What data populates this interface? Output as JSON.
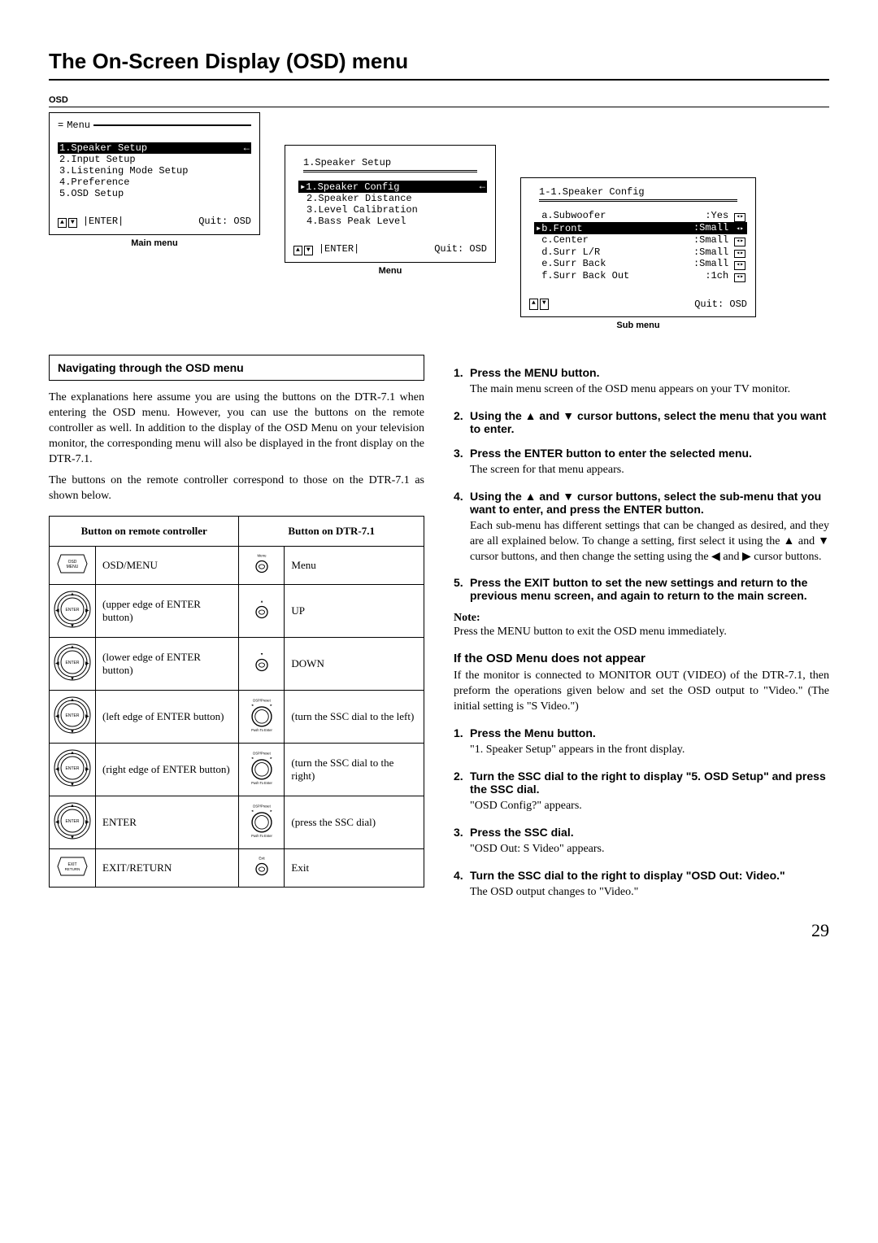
{
  "page_title": "The On-Screen Display (OSD) menu",
  "page_number": "29",
  "osd_label": "OSD",
  "main_menu": {
    "title": "Menu",
    "items": [
      "1.Speaker Setup",
      "2.Input Setup",
      "3.Listening Mode Setup",
      "4.Preference",
      "5.OSD Setup"
    ],
    "foot_left": "ENTER",
    "foot_right": "Quit: OSD",
    "caption": "Main menu"
  },
  "menu": {
    "title": "1.Speaker Setup",
    "items": [
      "1.Speaker Config",
      "2.Speaker Distance",
      "3.Level Calibration",
      "4.Bass Peak Level"
    ],
    "foot_left": "ENTER",
    "foot_right": "Quit: OSD",
    "caption": "Menu"
  },
  "sub_menu": {
    "title": "1-1.Speaker Config",
    "rows": [
      {
        "k": "a.Subwoofer",
        "v": ":Yes"
      },
      {
        "k": "b.Front",
        "v": ":Small"
      },
      {
        "k": "c.Center",
        "v": ":Small"
      },
      {
        "k": "d.Surr L/R",
        "v": ":Small"
      },
      {
        "k": "e.Surr Back",
        "v": ":Small"
      },
      {
        "k": "f.Surr Back Out",
        "v": ":1ch"
      }
    ],
    "foot_right": "Quit: OSD",
    "caption": "Sub menu"
  },
  "nav_heading": "Navigating through the OSD menu",
  "nav_p1": "The explanations here assume you are using the buttons on the DTR-7.1 when entering the OSD menu. However, you can use the buttons on the remote controller as well. In addition to the display of the OSD Menu on your television monitor, the corresponding menu will also be displayed in the front display on the DTR-7.1.",
  "nav_p2": "The buttons on the remote controller correspond to those on the DTR-7.1 as shown below.",
  "table": {
    "h1": "Button on remote controller",
    "h2": "Button on DTR-7.1",
    "rows": [
      {
        "rc": "OSD/MENU",
        "d_top": "Menu",
        "d": "Menu",
        "type": "small"
      },
      {
        "rc": "(upper edge of ENTER button)",
        "d_top": "▲",
        "d": "UP",
        "type": "small"
      },
      {
        "rc": "(lower edge of ENTER button)",
        "d_top": "▼",
        "d": "DOWN",
        "type": "small"
      },
      {
        "rc": "(left edge of ENTER button)",
        "d_top": "DSP/Preset",
        "d": "(turn the SSC dial to the left)",
        "type": "dial"
      },
      {
        "rc": "(right edge of ENTER button)",
        "d_top": "DSP/Preset",
        "d": "(turn the SSC dial to the right)",
        "type": "dial"
      },
      {
        "rc": "ENTER",
        "d_top": "DSP/Preset",
        "d": "(press the SSC dial)",
        "type": "dial"
      },
      {
        "rc": "EXIT/RETURN",
        "d_top": "Exit",
        "d": "Exit",
        "type": "small"
      }
    ]
  },
  "steps_a": [
    {
      "n": "1.",
      "h": "Press the MENU button.",
      "b": "The main menu screen of the OSD menu appears on your TV monitor."
    },
    {
      "n": "2.",
      "h": "Using the ▲ and ▼ cursor buttons, select the menu that you want to enter.",
      "b": ""
    },
    {
      "n": "3.",
      "h": "Press the ENTER button to enter the selected menu.",
      "b": "The screen for that menu appears."
    },
    {
      "n": "4.",
      "h": "Using the ▲ and ▼ cursor buttons, select the sub-menu that you want to enter, and press the ENTER button.",
      "b": "Each sub-menu has different settings that can be changed as desired, and they are all explained below. To change a setting, first select it using the ▲ and ▼ cursor buttons, and then change the setting using the ◀ and ▶ cursor buttons."
    },
    {
      "n": "5.",
      "h": "Press the EXIT button to set the new settings and return to the previous menu screen, and again to return to the main screen.",
      "b": ""
    }
  ],
  "note_h": "Note:",
  "note_b": "Press the MENU button to exit the OSD menu immediately.",
  "absent_h": "If the OSD Menu does not appear",
  "absent_b": "If the monitor is connected to MONITOR OUT (VIDEO) of the DTR-7.1, then preform the operations given below and set the OSD output to \"Video.\" (The initial setting is \"S Video.\")",
  "steps_b": [
    {
      "n": "1.",
      "h": "Press the Menu button.",
      "b": "\"1. Speaker Setup\" appears in the front display."
    },
    {
      "n": "2.",
      "h": "Turn the SSC dial to the right to display \"5. OSD Setup\" and press the SSC dial.",
      "b": "\"OSD Config?\" appears."
    },
    {
      "n": "3.",
      "h": "Press the SSC dial.",
      "b": "\"OSD Out: S Video\" appears."
    },
    {
      "n": "4.",
      "h": "Turn the SSC dial to the right to display \"OSD Out: Video.\"",
      "b": "The OSD output changes to \"Video.\""
    }
  ]
}
